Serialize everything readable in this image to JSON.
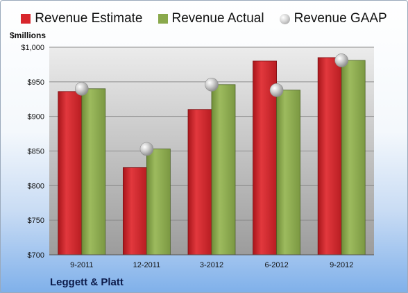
{
  "legend": {
    "estimate": "Revenue Estimate",
    "actual": "Revenue Actual",
    "gaap": "Revenue GAAP"
  },
  "unit_label": "$millions",
  "company": "Leggett & Platt",
  "colors": {
    "estimate": "#d8262c",
    "actual": "#8aa94c",
    "gaap": "#b5b5b5"
  },
  "chart_data": {
    "type": "bar",
    "categories": [
      "9-2011",
      "12-2011",
      "3-2012",
      "6-2012",
      "9-2012"
    ],
    "series": [
      {
        "name": "Revenue Estimate",
        "kind": "bar",
        "values": [
          936,
          826,
          910,
          980,
          985
        ]
      },
      {
        "name": "Revenue Actual",
        "kind": "bar",
        "values": [
          940,
          853,
          946,
          938,
          981
        ]
      },
      {
        "name": "Revenue GAAP",
        "kind": "marker",
        "values": [
          940,
          853,
          946,
          938,
          981
        ]
      }
    ],
    "ylabel": "$millions",
    "ylim": [
      700,
      1000
    ],
    "yticks": [
      700,
      750,
      800,
      850,
      900,
      950,
      1000
    ],
    "ytick_labels": [
      "$700",
      "$750",
      "$800",
      "$850",
      "$900",
      "$950",
      "$1,000"
    ],
    "grid": true,
    "legend_position": "top"
  }
}
